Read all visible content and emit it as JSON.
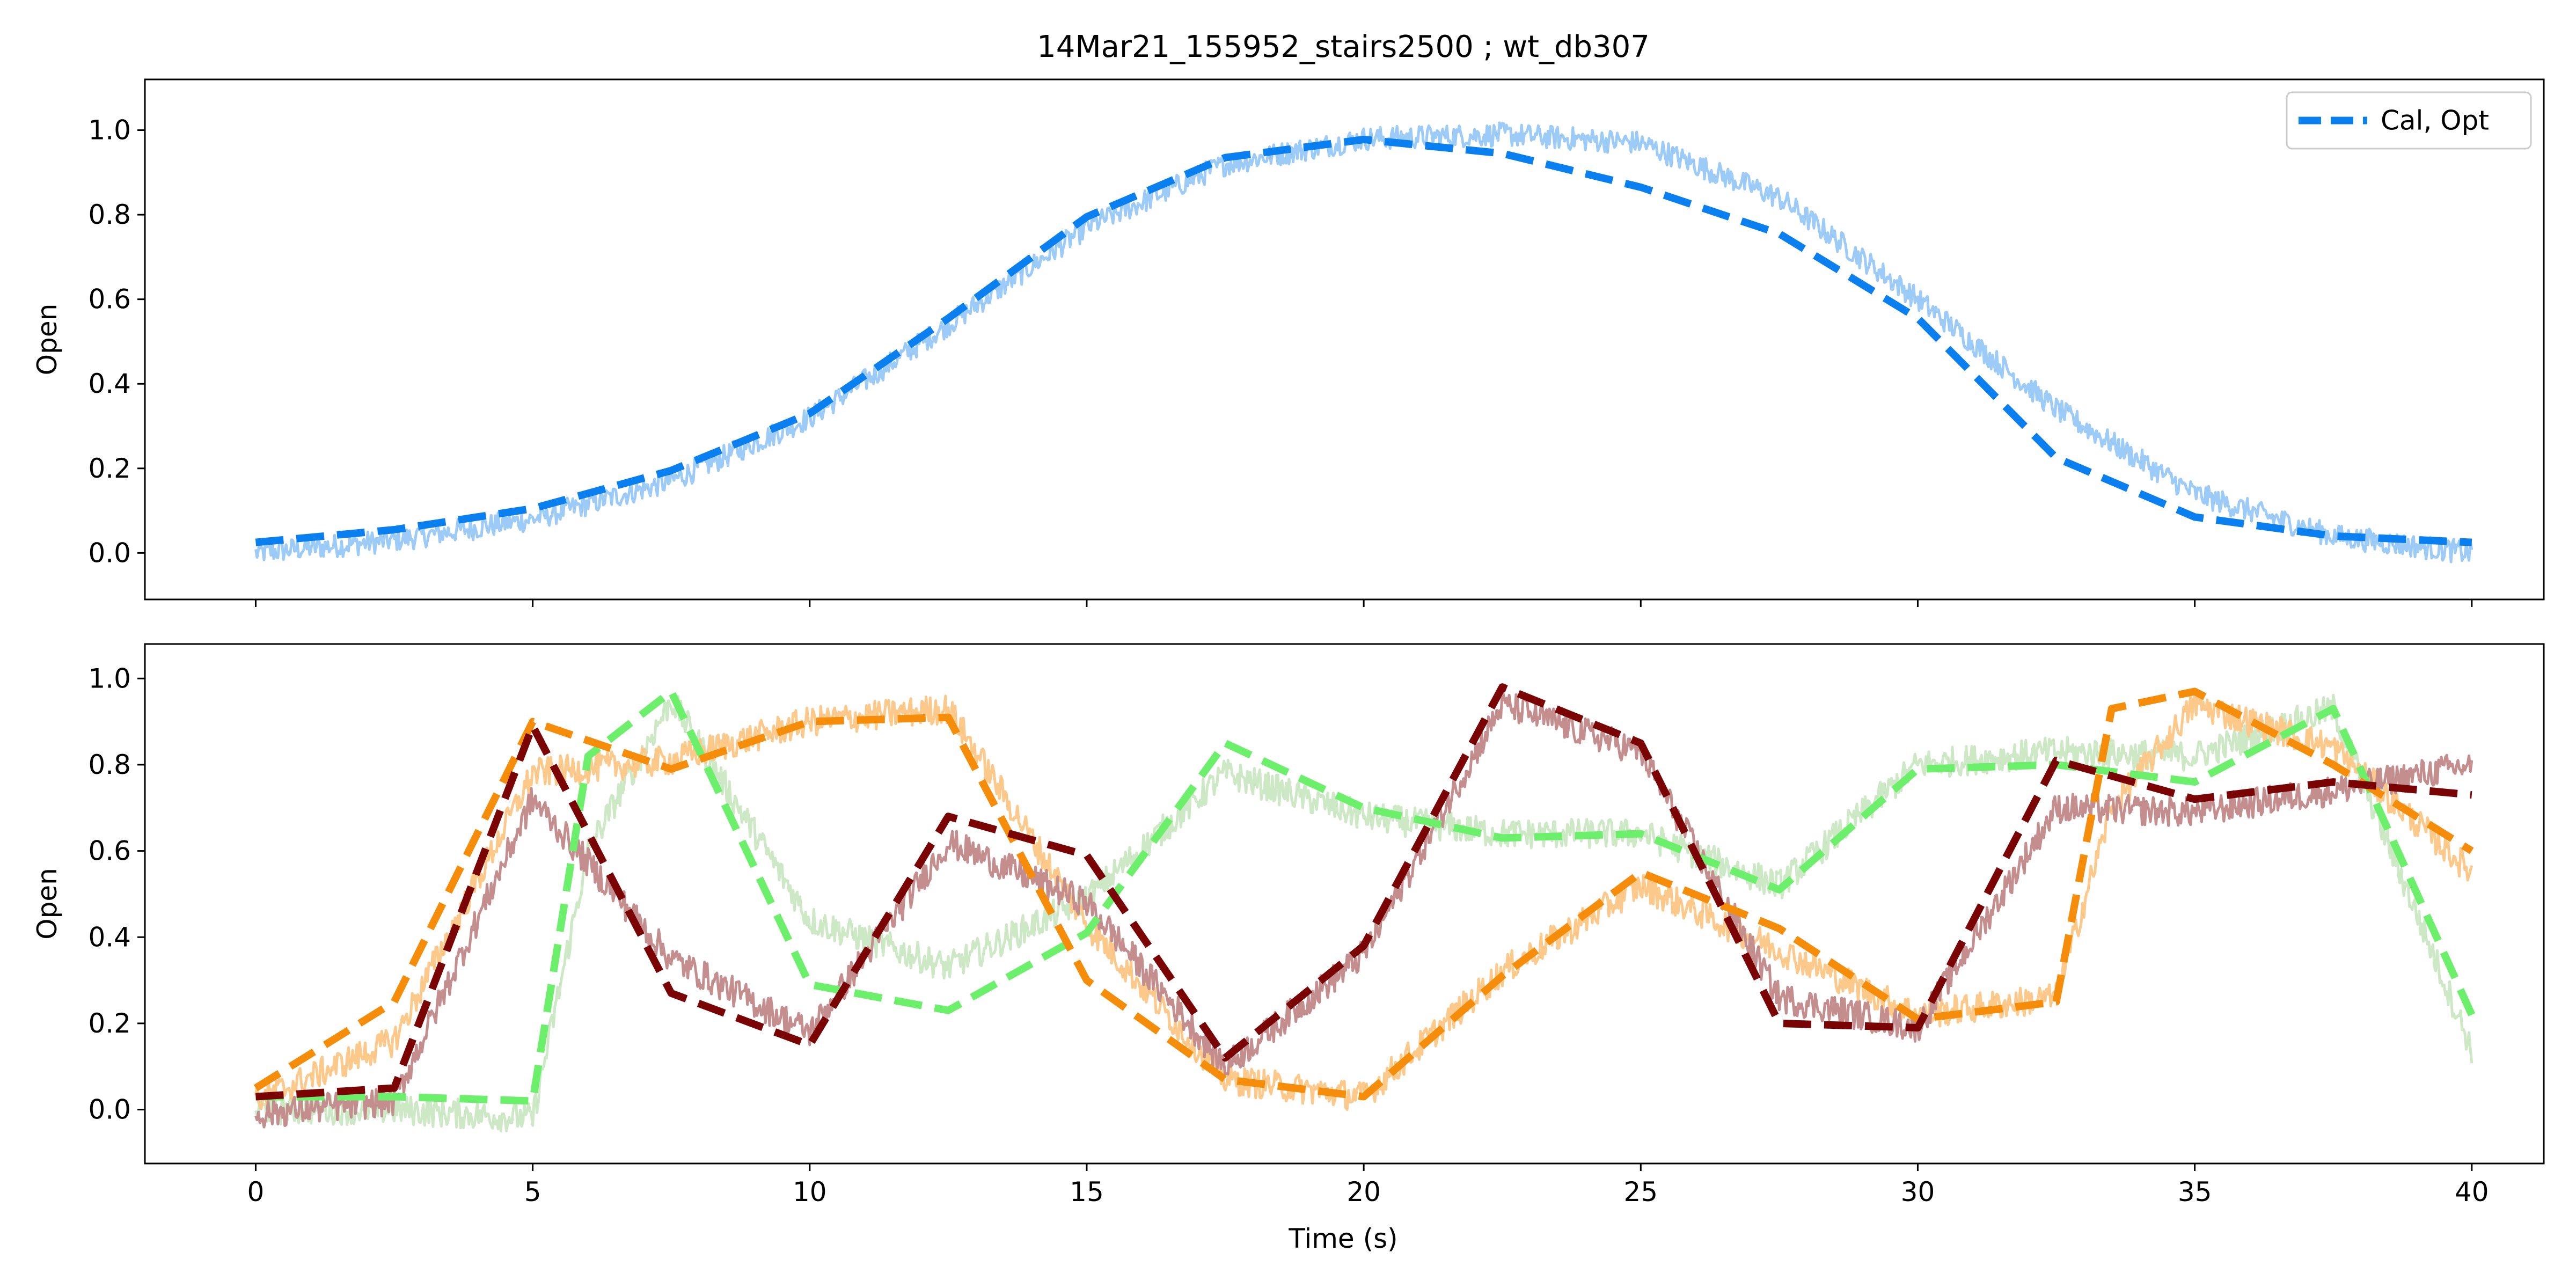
{
  "figure_title": "14Mar21_155952_stairs2500 ; wt_db307",
  "shared_x": {
    "label": "Time (s)",
    "lim": [
      -2,
      41.3
    ],
    "ticks": [
      0,
      5,
      10,
      15,
      20,
      25,
      30,
      35,
      40
    ],
    "tick_labels": [
      "0",
      "5",
      "10",
      "15",
      "20",
      "25",
      "30",
      "35",
      "40"
    ]
  },
  "chart_data": [
    {
      "type": "line",
      "title": "14Mar21_155952_stairs2500 ; wt_db307",
      "xlabel": "",
      "ylabel": "Open",
      "ylim": [
        -0.11,
        1.12
      ],
      "yticks": [
        0.0,
        0.2,
        0.4,
        0.6,
        0.8,
        1.0
      ],
      "ytick_labels": [
        "0.0",
        "0.2",
        "0.4",
        "0.6",
        "0.8",
        "1.0"
      ],
      "legend": {
        "placement": "top-right",
        "entries": [
          "Cal, Opt"
        ]
      },
      "series": [
        {
          "name": "Cal, Opt",
          "style": "dashed",
          "color": "#0a7ff0",
          "x": [
            0,
            2.5,
            5,
            7.5,
            10,
            12.5,
            15,
            17.5,
            20,
            22.5,
            25,
            27.5,
            30,
            32.5,
            35,
            37.5,
            40
          ],
          "values": [
            0.025,
            0.055,
            0.105,
            0.195,
            0.33,
            0.555,
            0.795,
            0.935,
            0.978,
            0.945,
            0.865,
            0.755,
            0.555,
            0.225,
            0.085,
            0.04,
            0.025
          ]
        },
        {
          "style": "noisy-band",
          "color": "#9ccbf8",
          "noise": 0.028,
          "x": [
            0,
            2.5,
            5,
            7.5,
            10,
            12.5,
            15,
            17.5,
            20,
            22.5,
            25,
            27.5,
            30,
            32.5,
            35,
            37.5,
            40
          ],
          "values": [
            0.0,
            0.03,
            0.08,
            0.17,
            0.32,
            0.54,
            0.77,
            0.92,
            0.98,
            0.99,
            0.97,
            0.84,
            0.6,
            0.34,
            0.14,
            0.04,
            0.0
          ]
        }
      ]
    },
    {
      "type": "line",
      "xlabel": "Time (s)",
      "ylabel": "Open",
      "ylim": [
        -0.125,
        1.08
      ],
      "yticks": [
        0.0,
        0.2,
        0.4,
        0.6,
        0.8,
        1.0
      ],
      "ytick_labels": [
        "0.0",
        "0.2",
        "0.4",
        "0.6",
        "0.8",
        "1.0"
      ],
      "series": [
        {
          "style": "noisy-band",
          "color": "#cce8c4",
          "noise": 0.035,
          "x": [
            0,
            2.5,
            5,
            6,
            7.5,
            10,
            12.5,
            15,
            17.5,
            20,
            22.5,
            25,
            27.5,
            30,
            32.5,
            35,
            37.5,
            40
          ],
          "values": [
            0.0,
            0.0,
            -0.02,
            0.6,
            0.95,
            0.44,
            0.33,
            0.49,
            0.78,
            0.68,
            0.64,
            0.64,
            0.52,
            0.8,
            0.83,
            0.82,
            0.93,
            0.14
          ]
        },
        {
          "style": "noisy-band",
          "color": "#fcc98a",
          "noise": 0.035,
          "x": [
            0,
            2.5,
            5,
            7.5,
            10,
            12.5,
            15,
            17.5,
            20,
            22.5,
            25,
            27.5,
            30,
            32.5,
            33.5,
            35,
            37.5,
            40
          ],
          "values": [
            0.02,
            0.16,
            0.78,
            0.81,
            0.9,
            0.93,
            0.43,
            0.07,
            0.03,
            0.32,
            0.52,
            0.37,
            0.22,
            0.26,
            0.7,
            0.94,
            0.84,
            0.55
          ]
        },
        {
          "style": "noisy-band",
          "color": "#c48e8e",
          "noise": 0.035,
          "x": [
            0,
            2.5,
            5,
            7.5,
            10,
            12.5,
            15,
            17.5,
            20,
            22.5,
            25,
            27.5,
            30,
            32.5,
            35,
            37.5,
            40
          ],
          "values": [
            -0.01,
            0.02,
            0.72,
            0.35,
            0.18,
            0.62,
            0.48,
            0.1,
            0.36,
            0.94,
            0.83,
            0.26,
            0.19,
            0.7,
            0.69,
            0.74,
            0.8
          ]
        },
        {
          "style": "dashed",
          "color": "#6cf06c",
          "x": [
            0,
            2.5,
            5,
            6,
            7.5,
            10,
            12.5,
            15,
            17.5,
            20,
            22.5,
            25,
            27.5,
            30,
            32.5,
            35,
            37.5,
            40
          ],
          "values": [
            0.03,
            0.03,
            0.02,
            0.82,
            0.97,
            0.29,
            0.23,
            0.41,
            0.85,
            0.7,
            0.63,
            0.64,
            0.51,
            0.79,
            0.8,
            0.76,
            0.93,
            0.22
          ]
        },
        {
          "style": "dashed",
          "color": "#f58d0a",
          "x": [
            0,
            2.5,
            5,
            7.5,
            10,
            12.5,
            15,
            17.5,
            20,
            22.5,
            25,
            27.5,
            30,
            32.5,
            33.5,
            35,
            37.5,
            40
          ],
          "values": [
            0.05,
            0.25,
            0.9,
            0.79,
            0.9,
            0.91,
            0.3,
            0.07,
            0.03,
            0.31,
            0.55,
            0.42,
            0.21,
            0.25,
            0.93,
            0.97,
            0.8,
            0.6
          ]
        },
        {
          "style": "dashed",
          "color": "#7a0404",
          "x": [
            0,
            2.5,
            5,
            7.5,
            10,
            12.5,
            15,
            17.5,
            20,
            22.5,
            25,
            27.5,
            30,
            32.5,
            35,
            37.5,
            40
          ],
          "values": [
            0.03,
            0.05,
            0.89,
            0.27,
            0.15,
            0.68,
            0.59,
            0.12,
            0.38,
            0.98,
            0.85,
            0.2,
            0.19,
            0.81,
            0.72,
            0.76,
            0.73
          ]
        }
      ]
    }
  ]
}
